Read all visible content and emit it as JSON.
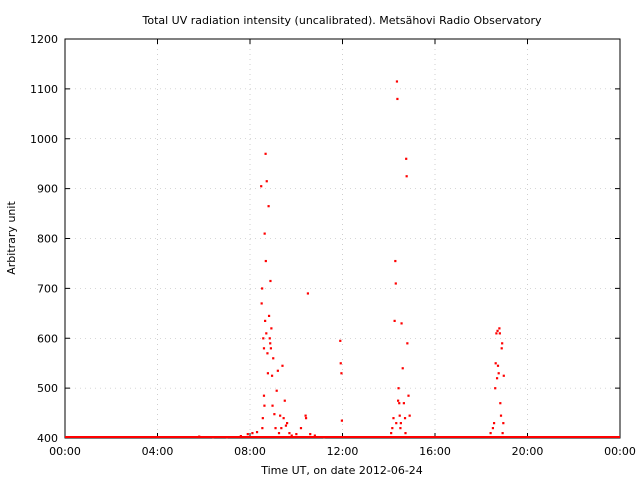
{
  "chart_data": {
    "type": "scatter",
    "title": "Total UV radiation intensity (uncalibrated). Metsähovi Radio Observatory",
    "xlabel": "Time UT, on date 2012-06-24",
    "ylabel": "Arbitrary unit",
    "xlim": [
      0,
      24
    ],
    "ylim": [
      400,
      1200
    ],
    "x_unit": "hours UT",
    "x_ticks": [
      0,
      4,
      8,
      12,
      16,
      20,
      24
    ],
    "x_tick_labels": [
      "00:00",
      "04:00",
      "08:00",
      "12:00",
      "16:00",
      "20:00",
      "00:00"
    ],
    "y_ticks": [
      400,
      500,
      600,
      700,
      800,
      900,
      1000,
      1100,
      1200
    ],
    "y_tick_labels": [
      "400",
      "500",
      "600",
      "700",
      "800",
      "900",
      "1000",
      "1100",
      "1200"
    ],
    "grid": true,
    "legend": "none",
    "color": "#ff0000",
    "baseline": {
      "value": 400,
      "x_start": 0,
      "x_end": 24
    },
    "series": [
      {
        "x": [
          5.8,
          6.4,
          7.0,
          7.6,
          7.9,
          8.1,
          8.3,
          8.48,
          8.5,
          8.52,
          8.53,
          8.55,
          8.57,
          8.6,
          8.6,
          8.62,
          8.63,
          8.65,
          8.67,
          8.68,
          8.7,
          8.72,
          8.75,
          8.77,
          8.8,
          8.82,
          8.85,
          8.87,
          8.88,
          8.9,
          8.92,
          8.95,
          8.97,
          9.0,
          9.05,
          9.1,
          9.15,
          9.2,
          9.25,
          9.3,
          9.35,
          9.4,
          9.45,
          9.5,
          9.55,
          9.6,
          9.7,
          9.8,
          10.0,
          10.2,
          10.4,
          10.42,
          10.5,
          10.6,
          10.8,
          11.2,
          11.9,
          11.92,
          11.95,
          11.97,
          14.1,
          14.15,
          14.2,
          14.25,
          14.28,
          14.3,
          14.32,
          14.35,
          14.37,
          14.4,
          14.42,
          14.45,
          14.47,
          14.5,
          14.52,
          14.55,
          14.6,
          14.65,
          14.7,
          14.72,
          14.75,
          14.77,
          14.8,
          14.85,
          14.9,
          18.4,
          18.5,
          18.55,
          18.6,
          18.62,
          18.65,
          18.68,
          18.7,
          18.72,
          18.75,
          18.78,
          18.8,
          18.82,
          18.85,
          18.88,
          18.9,
          18.92,
          18.95,
          18.97
        ],
        "y": [
          403,
          402,
          402,
          404,
          408,
          410,
          412,
          905,
          670,
          700,
          420,
          440,
          600,
          580,
          485,
          465,
          810,
          635,
          970,
          755,
          610,
          915,
          570,
          530,
          865,
          645,
          600,
          590,
          715,
          580,
          620,
          525,
          465,
          560,
          448,
          420,
          495,
          535,
          410,
          445,
          420,
          545,
          440,
          475,
          425,
          430,
          410,
          405,
          408,
          420,
          445,
          440,
          690,
          408,
          405,
          402,
          595,
          550,
          530,
          435,
          410,
          420,
          440,
          635,
          755,
          710,
          430,
          1115,
          1080,
          475,
          500,
          470,
          445,
          420,
          430,
          630,
          540,
          470,
          440,
          410,
          960,
          925,
          590,
          485,
          445,
          410,
          420,
          430,
          500,
          550,
          610,
          520,
          615,
          545,
          530,
          620,
          610,
          470,
          445,
          580,
          590,
          410,
          430,
          525
        ]
      }
    ]
  }
}
